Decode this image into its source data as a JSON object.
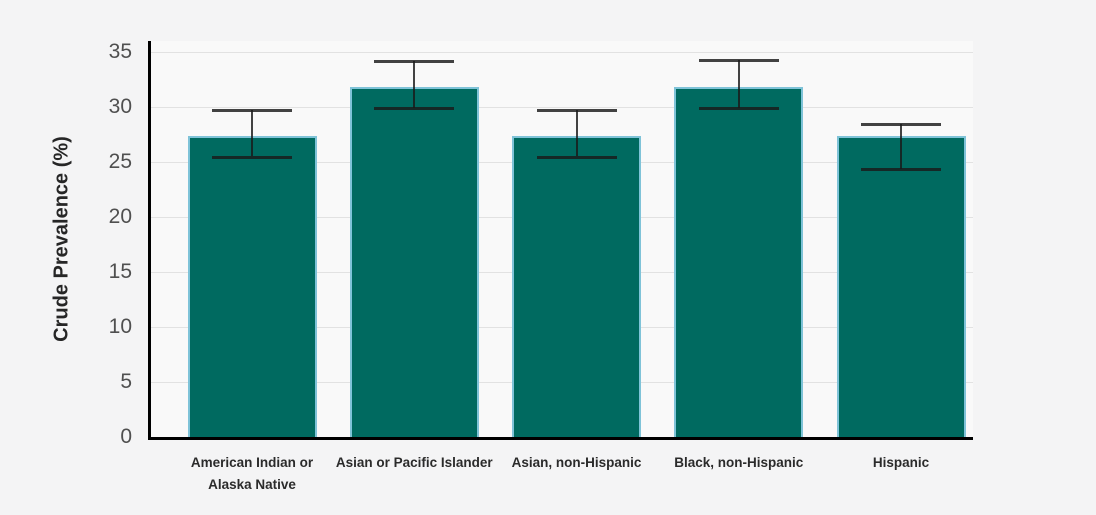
{
  "chart_data": {
    "type": "bar",
    "title": "",
    "ylabel": "Crude Prevalence (%)",
    "xlabel": "",
    "ylim": [
      0,
      35
    ],
    "yticks": [
      0,
      5,
      10,
      15,
      20,
      25,
      30,
      35
    ],
    "grid": true,
    "legend": false,
    "categories": [
      "American Indian or Alaska Native",
      "Asian or Pacific Islander",
      "Asian, non-Hispanic",
      "Black, non-Hispanic",
      "Hispanic"
    ],
    "series": [
      {
        "name": "Crude Prevalence (%)",
        "values": [
          27.4,
          31.8,
          27.4,
          31.8,
          27.4
        ],
        "error_low": [
          25.5,
          29.9,
          25.5,
          29.9,
          24.4
        ],
        "error_high": [
          29.7,
          34.2,
          29.7,
          34.3,
          28.5
        ]
      }
    ],
    "colors": {
      "bar_fill": "#006a60",
      "bar_border": "#7fc3d8",
      "error_bar": "#1a1a1a",
      "axis_line": "#000000",
      "gridline": "#e2e2e2",
      "tick_label": "#4f4f4f",
      "category_label": "#2b2b2b",
      "axis_title": "#262626",
      "plot_background": "#f9f9f9",
      "page_background": "#f4f4f5"
    }
  }
}
